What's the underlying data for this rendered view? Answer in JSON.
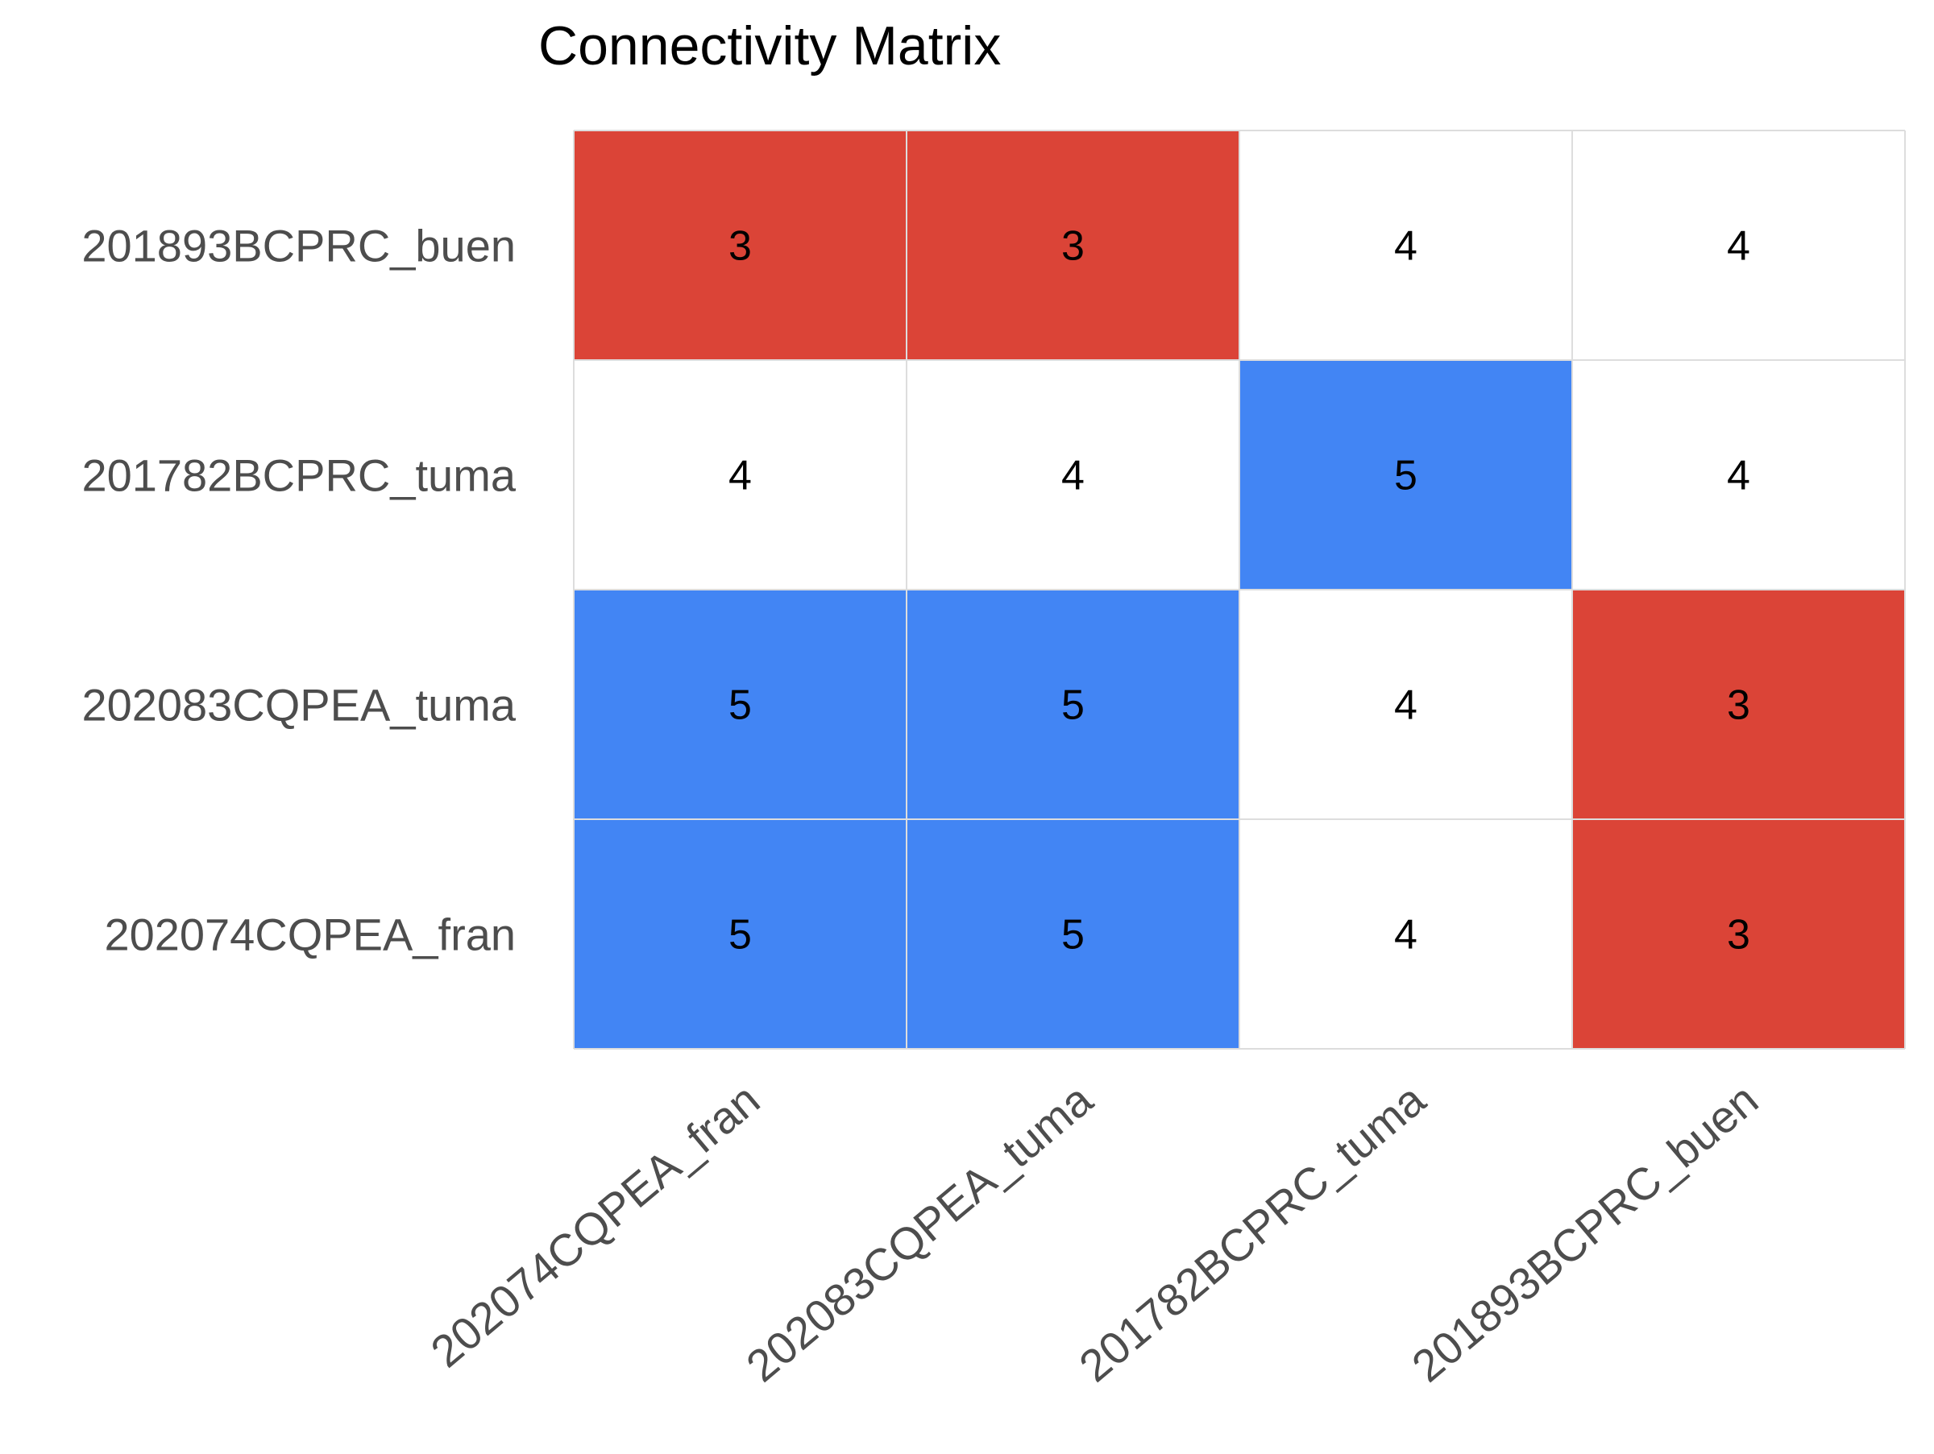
{
  "chart_data": {
    "type": "heatmap",
    "title": "Connectivity Matrix",
    "xlabel": "",
    "ylabel": "",
    "x_categories": [
      "202074CQPEA_fran",
      "202083CQPEA_tuma",
      "201782BCPRC_tuma",
      "201893BCPRC_buen"
    ],
    "y_categories": [
      "201893BCPRC_buen",
      "201782BCPRC_tuma",
      "202083CQPEA_tuma",
      "202074CQPEA_fran"
    ],
    "values": [
      [
        3,
        3,
        4,
        4
      ],
      [
        4,
        4,
        5,
        4
      ],
      [
        5,
        5,
        4,
        3
      ],
      [
        5,
        5,
        4,
        3
      ]
    ],
    "colorscale": {
      "3": "#db4437",
      "4": "#ffffff",
      "5": "#4285f4"
    },
    "grid": true,
    "legend": "none"
  },
  "colors": {
    "title": "#000000",
    "tick_label": "#4d4d4d",
    "cell_text": "#000000",
    "grid_line": "#dddddd"
  }
}
